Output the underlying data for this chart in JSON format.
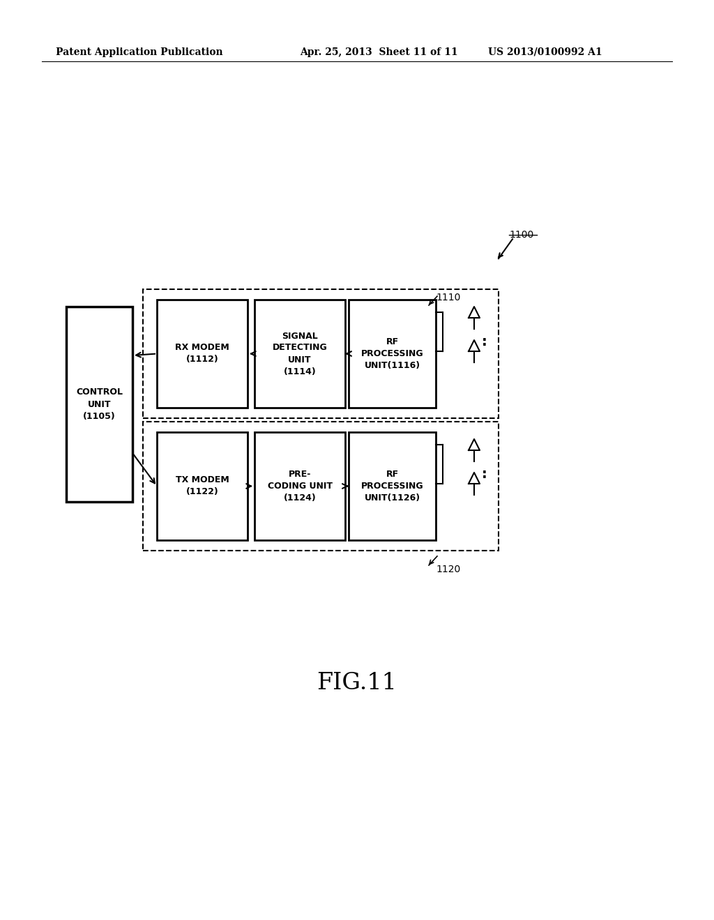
{
  "bg_color": "#ffffff",
  "text_color": "#000000",
  "header_left": "Patent Application Publication",
  "header_mid": "Apr. 25, 2013  Sheet 11 of 11",
  "header_right": "US 2013/0100992 A1",
  "fig_label": "FIG.11",
  "label_1100": "1100",
  "label_1110": "1110",
  "label_1120": "1120",
  "label_1105": "CONTROL\nUNIT\n(1105)",
  "label_1112": "RX MODEM\n(1112)",
  "label_1114": "SIGNAL\nDETECTING\nUNIT\n(1114)",
  "label_1116": "RF\nPROCESSING\nUNIT(1116)",
  "label_1122": "TX MODEM\n(1122)",
  "label_1124": "PRE-\nCODING UNIT\n(1124)",
  "label_1126": "RF\nPROCESSING\nUNIT(1126)"
}
